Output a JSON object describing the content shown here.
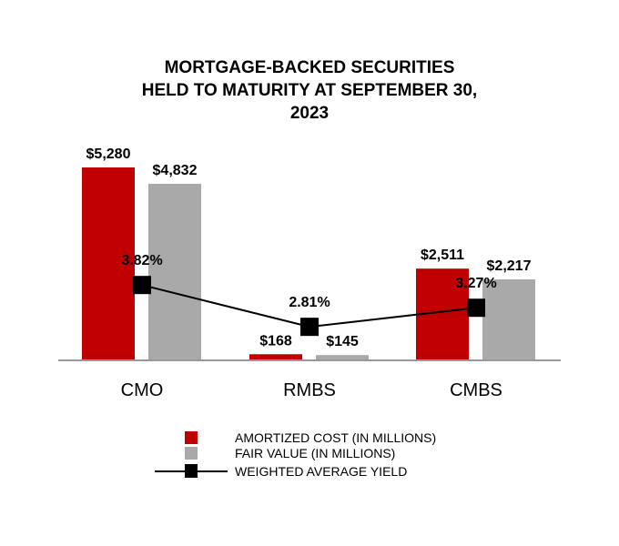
{
  "chart_data": {
    "type": "bar",
    "title_lines": [
      "MORTGAGE-BACKED SECURITIES",
      "HELD TO MATURITY AT SEPTEMBER 30,",
      "2023"
    ],
    "categories": [
      "CMO",
      "RMBS",
      "CMBS"
    ],
    "series": [
      {
        "name": "AMORTIZED COST (IN MILLIONS)",
        "type": "bar",
        "color": "#C00000",
        "values": [
          5280,
          168,
          2511
        ],
        "labels": [
          "$5,280",
          "$168",
          "$2,511"
        ]
      },
      {
        "name": "FAIR VALUE (IN MILLIONS)",
        "type": "bar",
        "color": "#A9A9A9",
        "values": [
          4832,
          145,
          2217
        ],
        "labels": [
          "$4,832",
          "$145",
          "$2,217"
        ]
      },
      {
        "name": "WEIGHTED AVERAGE YIELD",
        "type": "line",
        "color": "#000000",
        "axis": "secondary",
        "values": [
          3.82,
          2.81,
          3.27
        ],
        "labels": [
          "3.82%",
          "2.81%",
          "3.27%"
        ]
      }
    ],
    "ylim": [
      0,
      5280
    ],
    "y2lim": [
      2.0,
      6.5
    ],
    "grid": false,
    "legend_placement": "bottom"
  }
}
